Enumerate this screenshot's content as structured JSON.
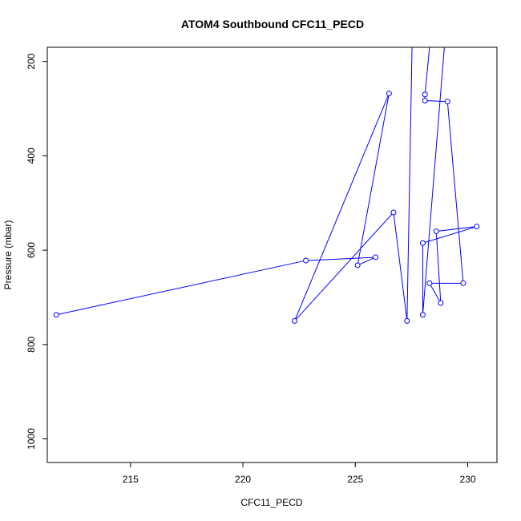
{
  "chart_data": {
    "type": "line",
    "title": "ATOM4 Southbound CFC11_PECD",
    "xlabel": "CFC11_PECD",
    "ylabel": "Pressure (mbar)",
    "xlim": [
      211.3,
      231.3
    ],
    "ylim": [
      1050,
      170
    ],
    "y_inverted": true,
    "grid": false,
    "legend": "none",
    "line_color": "#0000ff",
    "markers": "open-circle",
    "xticks": [
      215,
      220,
      225,
      230
    ],
    "yticks": [
      200,
      400,
      600,
      800,
      1000
    ],
    "series": [
      {
        "x": [
          229.1,
          228.4,
          228.1,
          228.1,
          229.1,
          229.8,
          228.3,
          228.8,
          228.6,
          230.4,
          228.0,
          228.0,
          229.4,
          227.6,
          227.3,
          226.7,
          222.3,
          226.5,
          225.1,
          225.9,
          222.8,
          211.7
        ],
        "y": [
          -40,
          120,
          270,
          283,
          285,
          670,
          670,
          712,
          560,
          550,
          585,
          737,
          -90,
          -30,
          750,
          520,
          750,
          268,
          632,
          615,
          622,
          737
        ]
      }
    ]
  }
}
